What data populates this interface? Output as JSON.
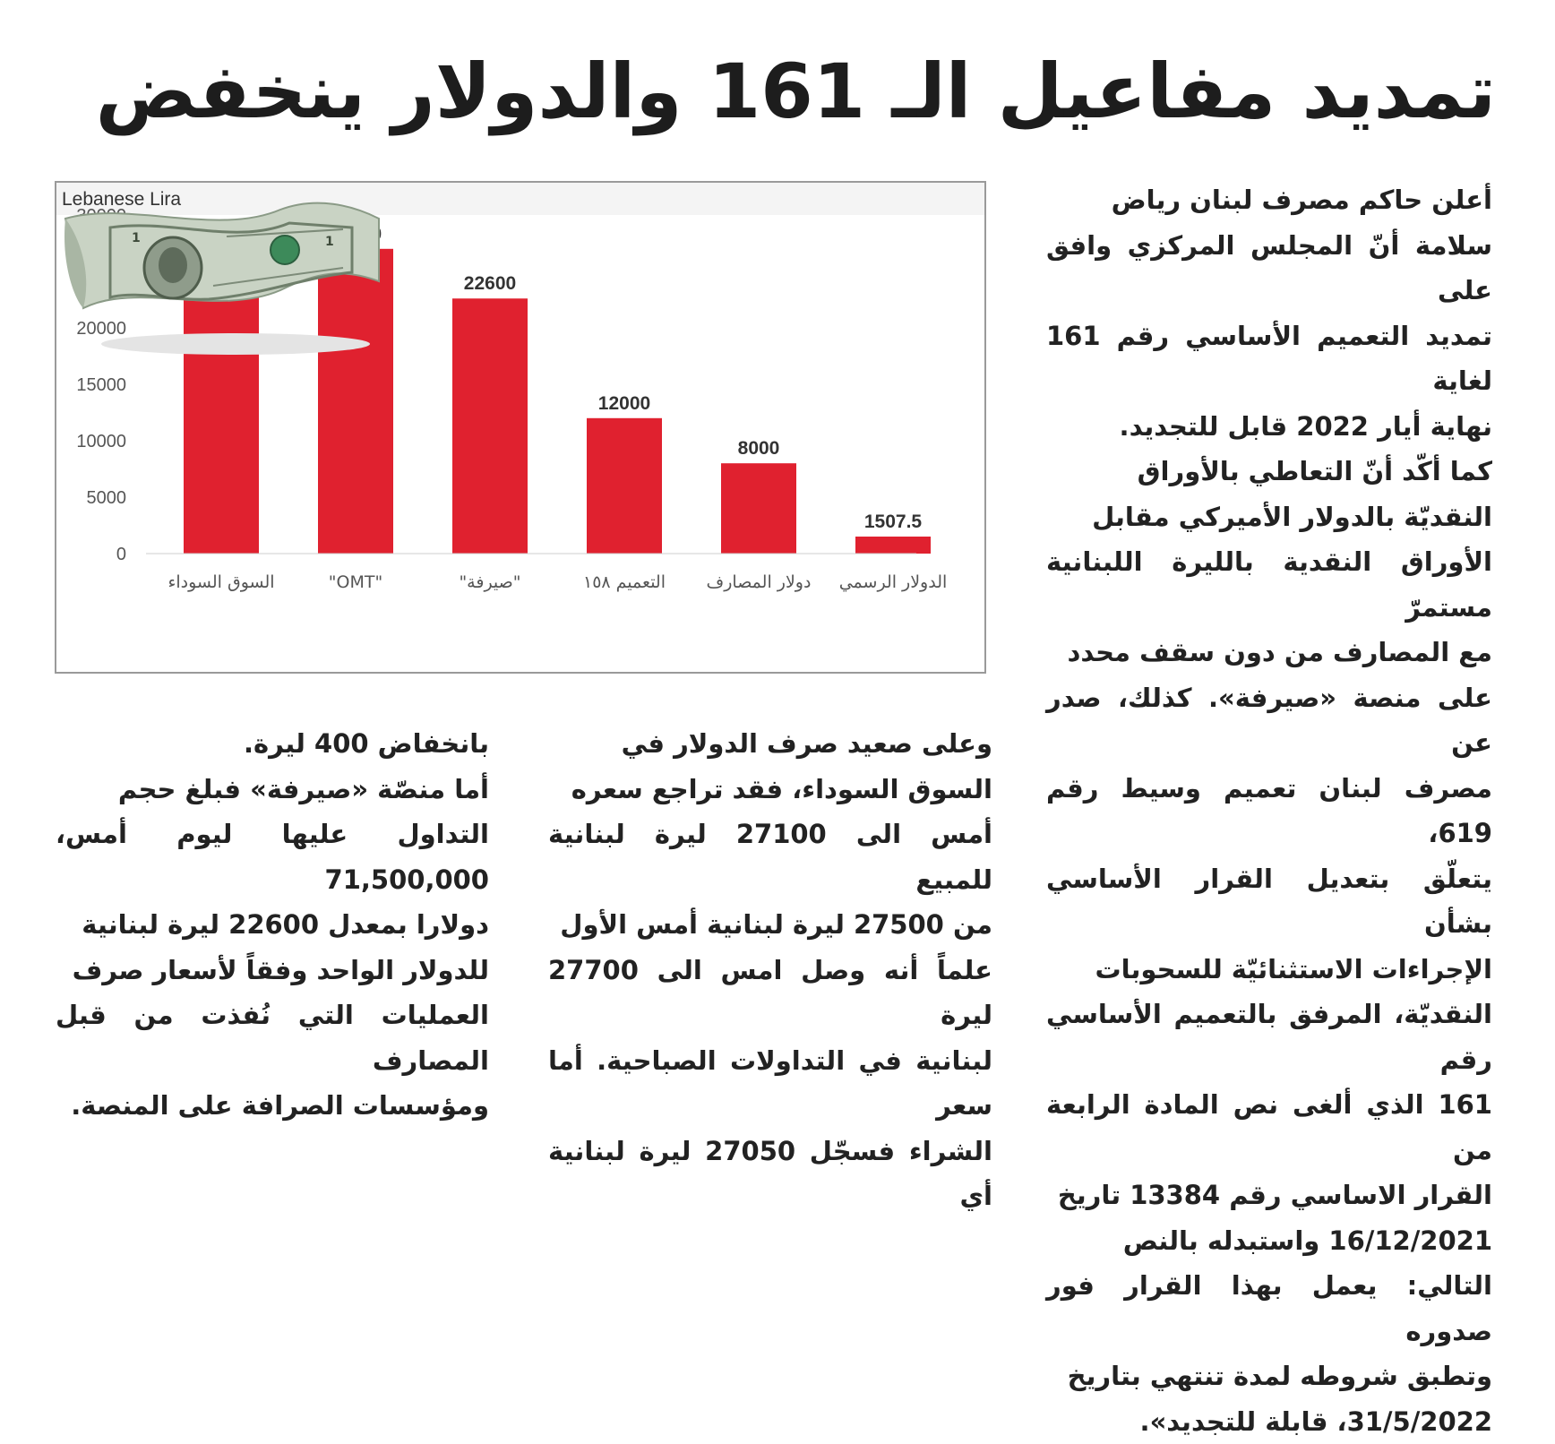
{
  "headline": "تمديد مفاعيل الـ 161 والدولار ينخفض",
  "columns": {
    "right": "أعلن حاكم مصرف لبنان رياض\nسلامة أنّ المجلس المركزي وافق على\nتمديد التعميم الأساسي رقم 161 لغاية\nنهاية أيار 2022 قابل للتجديد.\nكما أكّد أنّ التعاطي بالأوراق\nالنقديّة بالدولار الأميركي مقابل\nالأوراق النقدية بالليرة اللبنانية مستمرّ\nمع المصارف من دون سقف محدد\nعلى منصة «صيرفة». كذلك، صدر عن\nمصرف لبنان تعميم وسيط رقم 619،\nيتعلّق بتعديل القرار الأساسي بشأن\nالإجراءات الاستثنائيّة للسحوبات\nالنقديّة، المرفق بالتعميم الأساسي رقم\n161 الذي ألغى نص المادة الرابعة من\nالقرار الاساسي رقم 13384 تاريخ\n16/12/2021 واستبدله بالنص\nالتالي: يعمل بهذا القرار فور صدوره\nوتطبق شروطه لمدة تنتهي بتاريخ\n31/5/2022، قابلة للتجديد».",
    "middle": "وعلى صعيد صرف الدولار في\nالسوق السوداء، فقد تراجع سعره\nأمس الى 27100 ليرة لبنانية للمبيع\nمن 27500 ليرة لبنانية أمس الأول\nعلماً أنه وصل امس الى 27700 ليرة\nلبنانية في التداولات الصباحية. أما سعر\nالشراء فسجّل 27050 ليرة لبنانية أي",
    "left": "بانخفاض 400 ليرة.\nأما منصّة «صيرفة» فبلغ حجم\nالتداول عليها ليوم أمس، 71,500,000\nدولارا بمعدل 22600 ليرة لبنانية\nللدولار الواحد وفقاً لأسعار صرف\nالعمليات التي نُفذت من قبل المصارف\nومؤسسات الصرافة على المنصة."
  },
  "chart_data": {
    "type": "bar",
    "title": "Lebanese Lira",
    "xlabel": "",
    "ylabel": "",
    "categories": [
      "السوق السوداء",
      "\"OMT\"",
      "\"صيرفة\"",
      "التعميم ١٥٨",
      "دولار المصارف",
      "الدولار الرسمي"
    ],
    "values": [
      27100,
      27000,
      22600,
      12000,
      8000,
      1507.5
    ],
    "data_labels": [
      "27100",
      "27000",
      "22600",
      "12000",
      "8000",
      "1507.5"
    ],
    "ylim": [
      0,
      30000
    ],
    "yticks": [
      0,
      5000,
      10000,
      15000,
      20000,
      25000,
      30000
    ],
    "grid": false,
    "legend": "none",
    "bar_color": "#e0212f"
  },
  "colors": {
    "bar": "#e0212f",
    "text": "#222222",
    "axis_text": "#555555",
    "note_green": "#7f9a7a"
  },
  "icons": {
    "banknote": "dollar-bill-image"
  }
}
